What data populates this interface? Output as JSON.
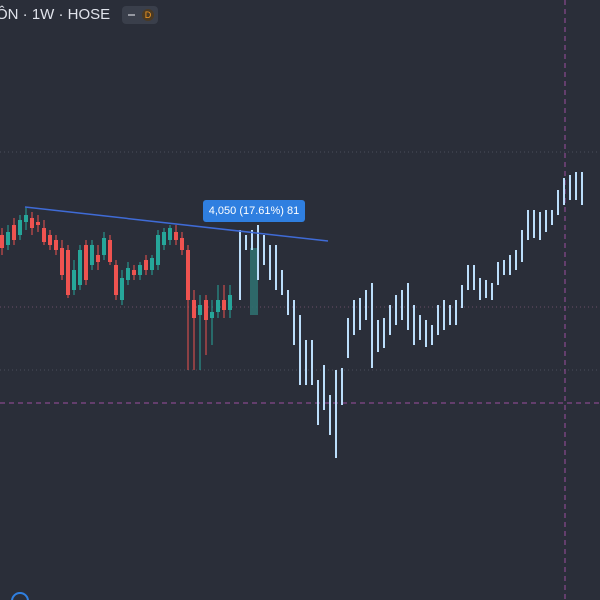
{
  "header": {
    "title": "ÔN · 1W · HOSE",
    "badge": "D"
  },
  "chart_data": {
    "type": "candlestick",
    "ylim": [
      8000,
      38000
    ],
    "up_color": "#26a69a",
    "down_color": "#ef5350",
    "bar_color": "#bbdefb",
    "annotation": "4,050 (17.61%) 81",
    "candles": {
      "open": [
        26250,
        25750,
        26750,
        26250,
        26900,
        27100,
        26900,
        26600,
        26250,
        26000,
        25600,
        25500,
        23500,
        23750,
        25750,
        24750,
        25250,
        25250,
        26000,
        24750,
        23000,
        24000,
        24500,
        24250,
        25000,
        24500,
        24750,
        25750,
        26000,
        26400,
        26100,
        25500,
        23000,
        22250,
        23000,
        22100,
        22400,
        23000,
        22500
      ],
      "high": [
        26600,
        26750,
        27100,
        27250,
        27600,
        27400,
        27250,
        27000,
        26500,
        26250,
        26000,
        25750,
        25000,
        25750,
        26000,
        26000,
        25750,
        26400,
        26250,
        25000,
        24500,
        24900,
        24750,
        24900,
        25250,
        25250,
        26500,
        26600,
        26750,
        26750,
        26400,
        25750,
        23500,
        23250,
        23250,
        23000,
        23750,
        23750,
        23750
      ],
      "low": [
        25250,
        25500,
        25750,
        26000,
        26500,
        26250,
        26400,
        25750,
        25500,
        25250,
        24000,
        23100,
        23250,
        23500,
        23750,
        24500,
        24500,
        25000,
        24750,
        23000,
        22750,
        23750,
        24000,
        24000,
        24250,
        24250,
        24500,
        25500,
        25750,
        25750,
        25250,
        19500,
        19500,
        19500,
        20250,
        20750,
        22100,
        22100,
        22100
      ],
      "close": [
        25600,
        26400,
        26000,
        27000,
        27250,
        26600,
        26750,
        25900,
        25750,
        25500,
        24250,
        23250,
        24500,
        25500,
        24000,
        25750,
        24900,
        26100,
        24900,
        23250,
        24100,
        24600,
        24250,
        24750,
        24500,
        25100,
        26250,
        26400,
        26600,
        26000,
        25500,
        23000,
        22100,
        22750,
        22000,
        22400,
        23000,
        22500,
        23250
      ]
    },
    "bars": {
      "high": [
        26500,
        26250,
        26500,
        26750,
        26250,
        25750,
        25750,
        24500,
        23500,
        23000,
        22250,
        21000,
        21000,
        19000,
        19750,
        18250,
        19500,
        19600,
        22100,
        23000,
        23100,
        23500,
        23850,
        22000,
        22100,
        22750,
        23250,
        23500,
        23850,
        22750,
        22250,
        22000,
        21750,
        22750,
        23000,
        22750,
        23000,
        23750,
        24750,
        24750,
        24100,
        24000,
        23850,
        24900,
        25000,
        25250,
        25500,
        26500,
        27500,
        27500,
        27400,
        27500,
        27500,
        28500,
        29100,
        29250,
        29400,
        29400
      ],
      "low": [
        23000,
        25500,
        25500,
        24000,
        24750,
        24000,
        23500,
        23250,
        22250,
        20750,
        18750,
        18750,
        18750,
        16750,
        17500,
        16250,
        15100,
        17750,
        20100,
        21250,
        21500,
        22000,
        19600,
        20400,
        20600,
        21250,
        21750,
        22000,
        21500,
        20750,
        21000,
        20650,
        20750,
        21250,
        21500,
        21750,
        21750,
        22600,
        23500,
        23500,
        23000,
        23100,
        23000,
        23750,
        24250,
        24250,
        24500,
        24900,
        26000,
        26100,
        26000,
        26400,
        26750,
        27250,
        27750,
        28000,
        28000,
        27750
      ]
    }
  }
}
